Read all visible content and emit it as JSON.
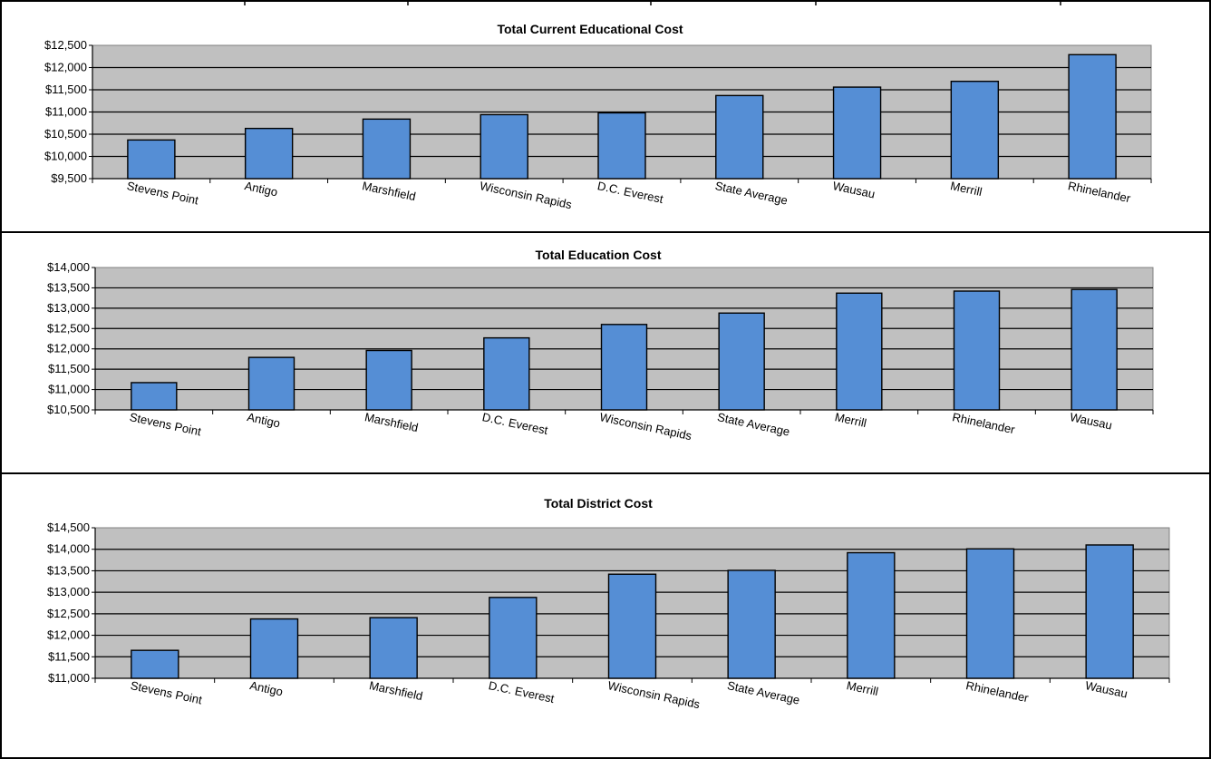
{
  "chart_data": [
    {
      "type": "bar",
      "title": "Total Current Educational Cost",
      "categories": [
        "Stevens Point",
        "Antigo",
        "Marshfield",
        "Wisconsin Rapids",
        "D.C. Everest",
        "State Average",
        "Wausau",
        "Merrill",
        "Rhinelander"
      ],
      "values": [
        10370,
        10630,
        10840,
        10940,
        10980,
        11370,
        11560,
        11690,
        12290
      ],
      "xlabel": "",
      "ylabel": "",
      "ylim": [
        9500,
        12500
      ],
      "ytick_step": 500,
      "yticks": [
        "$12,500",
        "$12,000",
        "$11,500",
        "$11,000",
        "$10,500",
        "$10,000",
        "$9,500"
      ],
      "grid": true,
      "bar_color": "#558ED5",
      "plot_background": "#C0C0C0"
    },
    {
      "type": "bar",
      "title": "Total Education Cost",
      "categories": [
        "Stevens Point",
        "Antigo",
        "Marshfield",
        "D.C. Everest",
        "Wisconsin Rapids",
        "State Average",
        "Merrill",
        "Rhinelander",
        "Wausau"
      ],
      "values": [
        11170,
        11790,
        11960,
        12270,
        12600,
        12880,
        13370,
        13420,
        13460
      ],
      "xlabel": "",
      "ylabel": "",
      "ylim": [
        10500,
        14000
      ],
      "ytick_step": 500,
      "yticks": [
        "$14,000",
        "$13,500",
        "$13,000",
        "$12,500",
        "$12,000",
        "$11,500",
        "$11,000",
        "$10,500"
      ],
      "grid": true,
      "bar_color": "#558ED5",
      "plot_background": "#C0C0C0"
    },
    {
      "type": "bar",
      "title": "Total District Cost",
      "categories": [
        "Stevens Point",
        "Antigo",
        "Marshfield",
        "D.C. Everest",
        "Wisconsin Rapids",
        "State Average",
        "Merrill",
        "Rhinelander",
        "Wausau"
      ],
      "values": [
        11650,
        12380,
        12410,
        12880,
        13420,
        13510,
        13920,
        14010,
        14100
      ],
      "xlabel": "",
      "ylabel": "",
      "ylim": [
        11000,
        14500
      ],
      "ytick_step": 500,
      "yticks": [
        "$14,500",
        "$14,000",
        "$13,500",
        "$13,000",
        "$12,500",
        "$12,000",
        "$11,500",
        "$11,000"
      ],
      "grid": true,
      "bar_color": "#558ED5",
      "plot_background": "#C0C0C0"
    }
  ]
}
